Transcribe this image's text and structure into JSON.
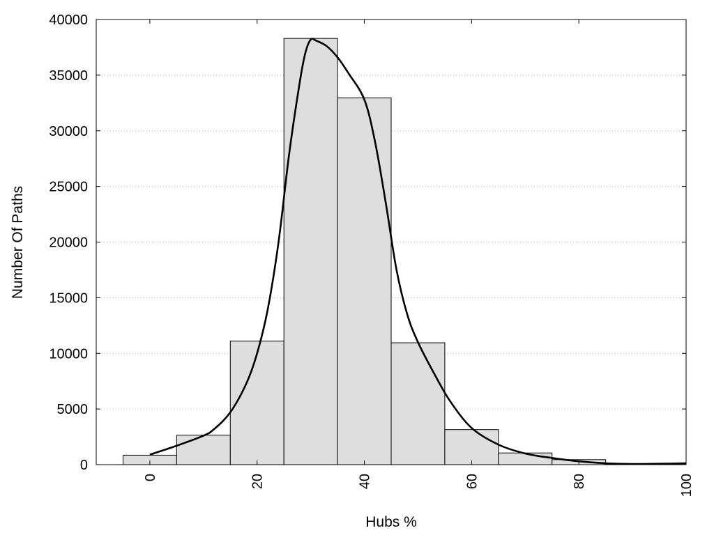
{
  "chart_data": {
    "type": "bar",
    "title": "",
    "xlabel": "Hubs %",
    "ylabel": "Number Of Paths",
    "xlim": [
      -10,
      100
    ],
    "ylim": [
      0,
      40000
    ],
    "x_ticks": [
      "0",
      "20",
      "40",
      "60",
      "80",
      "100"
    ],
    "y_ticks": [
      "0",
      "5000",
      "10000",
      "15000",
      "20000",
      "25000",
      "30000",
      "35000",
      "40000"
    ],
    "grid": "horizontal dotted",
    "bar_width": 10,
    "bars": {
      "x": [
        0,
        10,
        20,
        30,
        40,
        50,
        60,
        70,
        80,
        90
      ],
      "values": [
        850,
        2650,
        11100,
        38300,
        32950,
        10950,
        3150,
        1050,
        450,
        50
      ]
    },
    "curve": {
      "x": [
        0,
        5,
        10,
        12,
        15,
        18,
        20,
        22,
        24,
        26,
        28,
        29,
        30,
        31,
        33,
        35,
        37,
        40,
        42,
        44,
        46,
        48,
        50,
        53,
        56,
        60,
        65,
        70,
        75,
        80,
        85,
        90,
        95,
        100
      ],
      "values": [
        900,
        1700,
        2600,
        3200,
        4700,
        7300,
        10000,
        14000,
        20000,
        28000,
        34500,
        37000,
        38200,
        38100,
        37600,
        36600,
        35200,
        32800,
        29000,
        23500,
        17500,
        13500,
        11000,
        8200,
        5700,
        3300,
        1800,
        1000,
        600,
        300,
        120,
        60,
        80,
        120
      ]
    },
    "colors": {
      "bar_fill": "#dedede",
      "bar_stroke": "#000000",
      "curve": "#000000",
      "grid": "#b3b3b3"
    }
  }
}
